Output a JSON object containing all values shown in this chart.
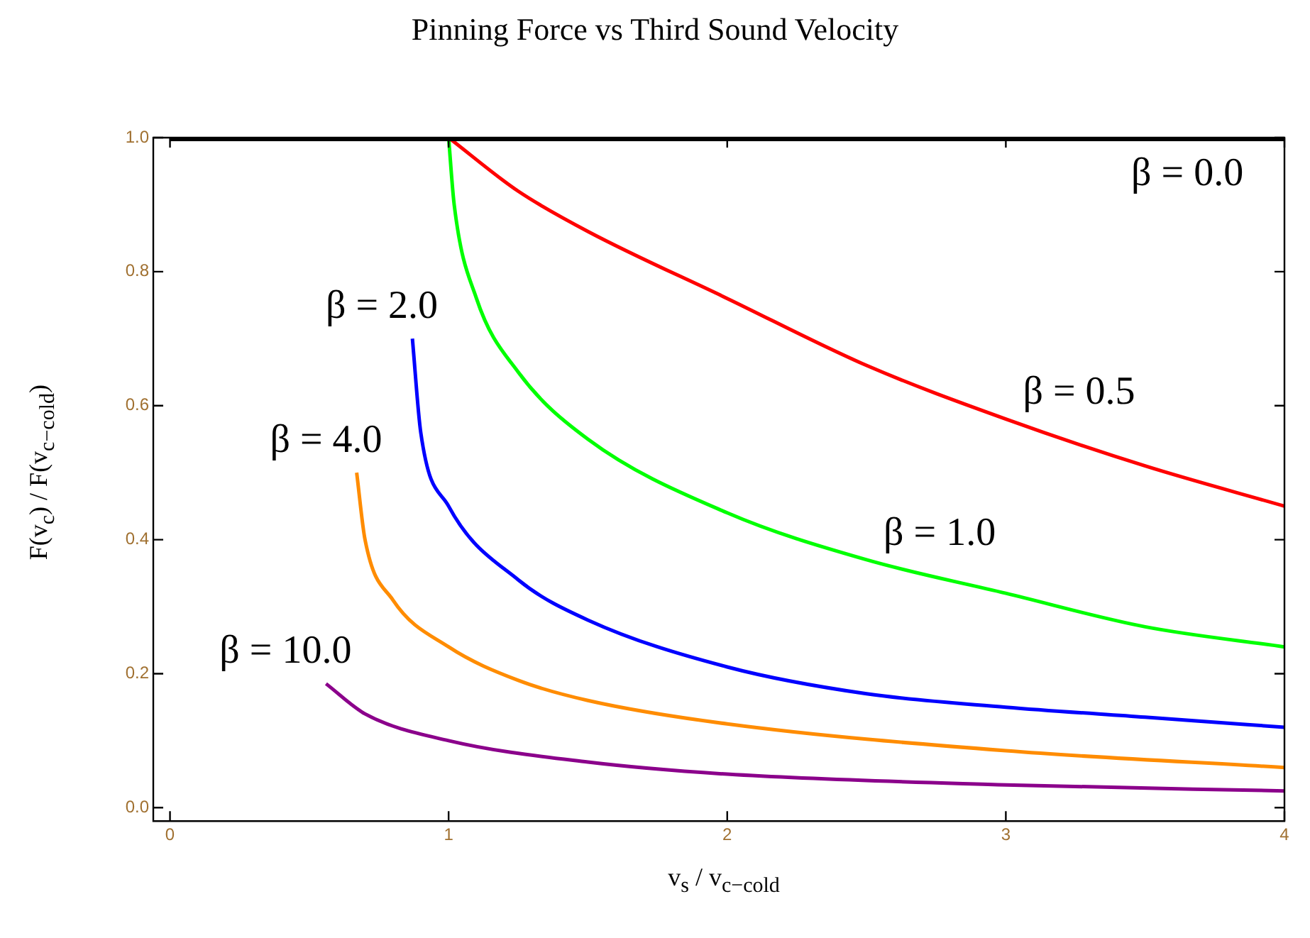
{
  "chart_data": {
    "type": "line",
    "title": "Pinning Force vs Third Sound Velocity",
    "xlabel": "v$_{s}$ / v$_{c−cold}$",
    "ylabel": "F(v$_{c}$) / F(v$_{c−cold}$)",
    "xlim": [
      -0.06,
      4.0
    ],
    "ylim": [
      -0.02,
      1.0
    ],
    "xticks": [
      0,
      1,
      2,
      3,
      4
    ],
    "yticks": [
      {
        "value": 0,
        "label": "0.0"
      },
      {
        "value": 0.2,
        "label": "0.2"
      },
      {
        "value": 0.4,
        "label": "0.4"
      },
      {
        "value": 0.6,
        "label": "0.6"
      },
      {
        "value": 0.8,
        "label": "0.8"
      },
      {
        "value": 1.0,
        "label": "1.0"
      }
    ],
    "grid": false,
    "legend": false,
    "marker": "none",
    "line_style": "solid",
    "series": [
      {
        "color": "#000000",
        "x": [
          0,
          4
        ],
        "values": [
          1,
          1
        ]
      },
      {
        "color": "#ff0000",
        "x": [
          1,
          1.25,
          1.5,
          2,
          2.5,
          3,
          3.5,
          4
        ],
        "values": [
          1,
          0.92,
          0.86,
          0.76,
          0.66,
          0.58,
          0.51,
          0.45
        ]
      },
      {
        "color": "#00ff00",
        "x": [
          1,
          1.02,
          1.1,
          1.25,
          1.5,
          2,
          2.5,
          3,
          3.5,
          4
        ],
        "values": [
          1,
          0.9,
          0.76,
          0.65,
          0.55,
          0.44,
          0.37,
          0.32,
          0.27,
          0.24
        ]
      },
      {
        "color": "#0000ff",
        "x": [
          0.87,
          0.9,
          1,
          1.25,
          1.5,
          2,
          2.5,
          3,
          3.5,
          4
        ],
        "values": [
          0.7,
          0.56,
          0.45,
          0.34,
          0.28,
          0.21,
          0.17,
          0.15,
          0.135,
          0.12
        ]
      },
      {
        "color": "#ff8c00",
        "x": [
          0.67,
          0.7,
          0.8,
          1,
          1.25,
          1.5,
          2,
          3,
          4
        ],
        "values": [
          0.5,
          0.4,
          0.31,
          0.24,
          0.19,
          0.16,
          0.125,
          0.085,
          0.06
        ]
      },
      {
        "color": "#8b008b",
        "x": [
          0.56,
          0.7,
          1,
          1.5,
          2,
          3,
          4
        ],
        "values": [
          0.185,
          0.14,
          0.1,
          0.068,
          0.05,
          0.034,
          0.025
        ]
      }
    ],
    "annotations": [
      {
        "text": "β = 0.0",
        "x": 3.45,
        "y": 1
      },
      {
        "text": "β = 0.5",
        "x": 3,
        "y": 0.58
      },
      {
        "text": "β = 1.0",
        "x": 2.5,
        "y": 0.37
      },
      {
        "text": "β = 2.0",
        "x": 0.87,
        "y": 0.7
      },
      {
        "text": "β = 4.0",
        "x": 0.67,
        "y": 0.5
      },
      {
        "text": "β = 10.0",
        "x": 0.56,
        "y": 0.185
      }
    ]
  }
}
